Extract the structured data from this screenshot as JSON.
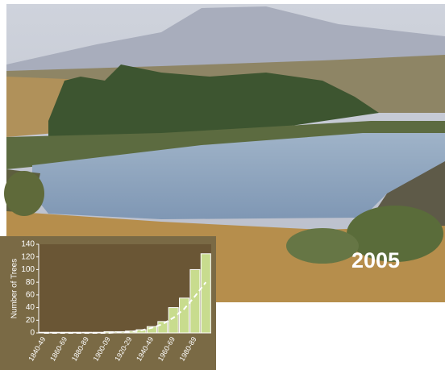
{
  "year_label": "2005",
  "chart_data": {
    "type": "bar",
    "ylabel": "Number of Trees",
    "categories": [
      "1840-49",
      null,
      "1860-69",
      null,
      "1880-89",
      null,
      "1900-09",
      null,
      "1920-29",
      null,
      "1940-49",
      null,
      "1960-69",
      null,
      "1980-89",
      null
    ],
    "values": [
      1,
      1,
      1,
      1,
      1,
      1,
      2,
      2,
      3,
      5,
      10,
      18,
      40,
      55,
      100,
      125
    ],
    "trend": [
      0,
      0,
      0,
      0,
      0,
      0,
      0,
      1,
      2,
      4,
      8,
      14,
      24,
      38,
      58,
      80
    ],
    "color": "#c8dc8e",
    "ylim": [
      0,
      140
    ],
    "yticks": [
      0,
      20,
      40,
      60,
      80,
      100,
      120,
      140
    ]
  }
}
